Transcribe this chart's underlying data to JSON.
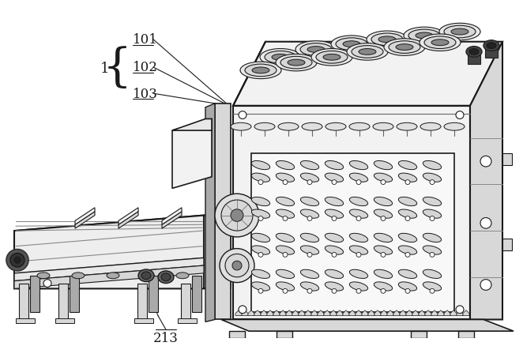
{
  "background_color": "#ffffff",
  "line_color": "#1a1a1a",
  "label_1": "1",
  "label_101": "101",
  "label_102": "102",
  "label_103": "103",
  "label_213": "213",
  "fig_width": 6.62,
  "fig_height": 4.39,
  "dpi": 100,
  "lw": 1.0,
  "gray_light": "#f2f2f2",
  "gray_mid": "#d8d8d8",
  "gray_dark": "#aaaaaa",
  "gray_darker": "#888888",
  "gray_black": "#444444"
}
